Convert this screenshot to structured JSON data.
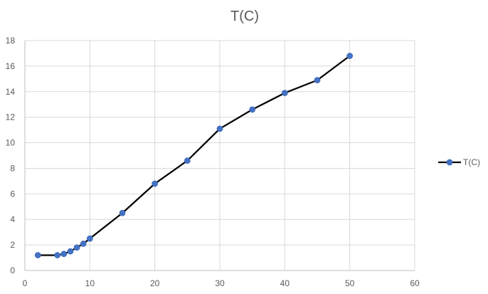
{
  "chart_data": {
    "type": "scatter",
    "title": "T(C)",
    "xlabel": "",
    "ylabel": "",
    "xlim": [
      0,
      60
    ],
    "ylim": [
      0,
      18
    ],
    "x_ticks": [
      0,
      10,
      20,
      30,
      40,
      50,
      60
    ],
    "y_ticks": [
      0,
      2,
      4,
      6,
      8,
      10,
      12,
      14,
      16,
      18
    ],
    "grid": true,
    "legend_position": "right",
    "series": [
      {
        "name": "T(C)",
        "color": "#4472C4",
        "line_color": "#000000",
        "x": [
          2,
          5,
          6,
          7,
          8,
          9,
          10,
          15,
          20,
          25,
          30,
          35,
          40,
          45,
          50
        ],
        "y": [
          1.2,
          1.2,
          1.3,
          1.5,
          1.8,
          2.1,
          2.5,
          4.5,
          6.8,
          8.6,
          11.1,
          12.6,
          13.9,
          14.9,
          16.8
        ]
      }
    ]
  }
}
